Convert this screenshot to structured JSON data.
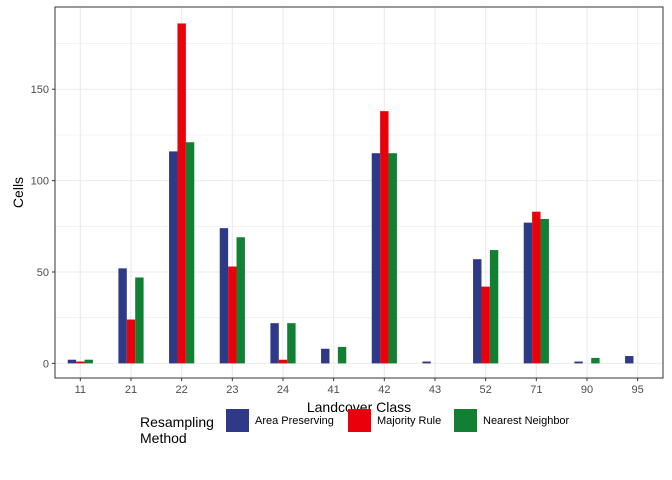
{
  "chart_data": {
    "type": "bar",
    "xlabel": "Landcover Class",
    "ylabel": "Cells",
    "categories": [
      "11",
      "21",
      "22",
      "23",
      "24",
      "41",
      "42",
      "43",
      "52",
      "71",
      "90",
      "95"
    ],
    "ylim": [
      -8,
      195
    ],
    "yticks": [
      0,
      50,
      100,
      150
    ],
    "grid": true,
    "legend": {
      "position": "bottom",
      "title_lines": [
        "Resampling",
        "Method"
      ]
    },
    "series": [
      {
        "name": "Area Preserving",
        "color": "#2E3A87",
        "values": [
          2,
          52,
          116,
          74,
          22,
          8,
          115,
          1,
          57,
          77,
          1,
          4
        ]
      },
      {
        "name": "Majority Rule",
        "color": "#E8000B",
        "values": [
          1,
          24,
          186,
          53,
          2,
          0,
          138,
          0,
          42,
          83,
          0,
          0
        ]
      },
      {
        "name": "Nearest Neighbor",
        "color": "#118033",
        "values": [
          2,
          47,
          121,
          69,
          22,
          9,
          115,
          0,
          62,
          79,
          3,
          0
        ]
      }
    ]
  }
}
